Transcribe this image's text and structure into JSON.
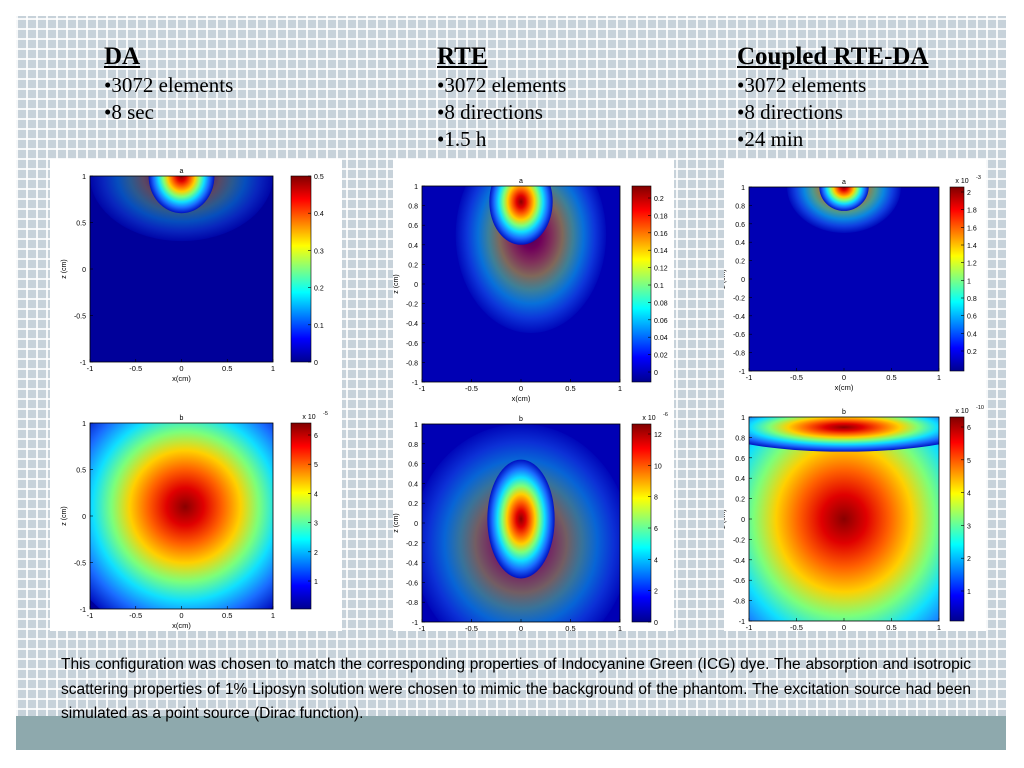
{
  "columns": [
    {
      "heading": "DA",
      "bullets": [
        "•3072 elements",
        "•8 sec"
      ]
    },
    {
      "heading": "RTE",
      "bullets": [
        "•3072 elements",
        "•8 directions",
        "•1.5 h"
      ]
    },
    {
      "heading": "Coupled RTE-DA",
      "bullets": [
        "•3072 elements",
        "•8 directions",
        "•24 min"
      ]
    }
  ],
  "plots": {
    "letters": [
      "a",
      "b"
    ],
    "xlabel": "x(cm)",
    "ylabel": "z (cm)",
    "da": {
      "x_ticks": [
        "-1",
        "-0.5",
        "0",
        "0.5",
        "1"
      ],
      "y_ticks": [
        "1",
        "0.5",
        "0",
        "-0.5",
        "-1"
      ],
      "a_colorbar": [
        "0.5",
        "0.4",
        "0.3",
        "0.2",
        "0.1",
        "0"
      ],
      "b_colorbar": [
        "6",
        "5",
        "4",
        "3",
        "2",
        "1"
      ],
      "b_exponent": "x 10",
      "b_exponent_power": "-5"
    },
    "rte": {
      "x_ticks": [
        "-1",
        "-0.5",
        "0",
        "0.5",
        "1"
      ],
      "y_ticks": [
        "1",
        "0.8",
        "0.6",
        "0.4",
        "0.2",
        "0",
        "-0.2",
        "-0.4",
        "-0.6",
        "-0.8",
        "-1"
      ],
      "a_colorbar": [
        "0.2",
        "0.18",
        "0.16",
        "0.14",
        "0.12",
        "0.1",
        "0.08",
        "0.06",
        "0.04",
        "0.02",
        "0"
      ],
      "b_colorbar": [
        "12",
        "10",
        "8",
        "6",
        "4",
        "2",
        "0"
      ],
      "b_exponent": "x 10",
      "b_exponent_power": "-6"
    },
    "coupled": {
      "x_ticks": [
        "-1",
        "-0.5",
        "0",
        "0.5",
        "1"
      ],
      "y_ticks": [
        "1",
        "0.8",
        "0.6",
        "0.4",
        "0.2",
        "0",
        "-0.2",
        "-0.4",
        "-0.6",
        "-0.8",
        "-1"
      ],
      "a_colorbar": [
        "2",
        "1.8",
        "1.6",
        "1.4",
        "1.2",
        "1",
        "0.8",
        "0.6",
        "0.4",
        "0.2"
      ],
      "a_exponent": "x 10",
      "a_exponent_power": "-3",
      "b_colorbar": [
        "6",
        "5",
        "4",
        "3",
        "2",
        "1"
      ],
      "b_exponent": "x 10",
      "b_exponent_power": "-10"
    }
  },
  "caption": "This configuration was chosen to match the corresponding properties of Indocyanine Green (ICG) dye. The absorption and isotropic scattering properties of 1% Liposyn solution were chosen to mimic the background of the phantom. The excitation source had been simulated as a point source (Dirac function)."
}
